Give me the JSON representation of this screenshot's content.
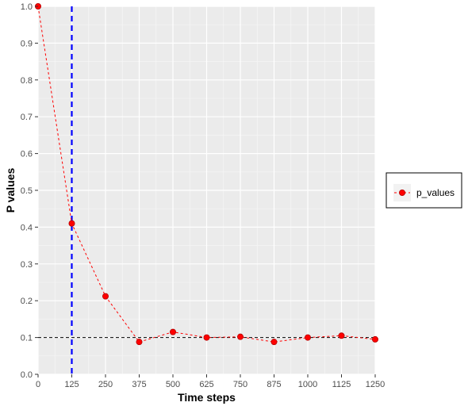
{
  "chart_data": {
    "type": "line",
    "xlabel": "Time steps",
    "ylabel": "P values",
    "x_ticks": [
      0,
      125,
      250,
      375,
      500,
      625,
      750,
      875,
      1000,
      1125,
      1250
    ],
    "y_ticks": [
      0.0,
      0.1,
      0.2,
      0.3,
      0.4,
      0.5,
      0.6,
      0.7,
      0.8,
      0.9,
      1.0
    ],
    "y_tick_labels": [
      "0.0",
      "0.1",
      "0.2",
      "0.3",
      "0.4",
      "0.5",
      "0.6",
      "0.7",
      "0.8",
      "0.9",
      "1.0"
    ],
    "xlim": [
      0,
      1250
    ],
    "ylim": [
      0,
      1
    ],
    "grid": true,
    "legend_position": "right",
    "series": [
      {
        "name": "p_values",
        "color": "#ff0000",
        "line_style": "dashed",
        "marker": "circle",
        "points": [
          {
            "x": 0,
            "y": 1.0
          },
          {
            "x": 125,
            "y": 0.41
          },
          {
            "x": 250,
            "y": 0.212
          },
          {
            "x": 375,
            "y": 0.088
          },
          {
            "x": 500,
            "y": 0.115
          },
          {
            "x": 625,
            "y": 0.1
          },
          {
            "x": 750,
            "y": 0.102
          },
          {
            "x": 875,
            "y": 0.088
          },
          {
            "x": 1000,
            "y": 0.1
          },
          {
            "x": 1125,
            "y": 0.105
          },
          {
            "x": 1250,
            "y": 0.095
          }
        ]
      }
    ],
    "reference_lines": [
      {
        "orientation": "vertical",
        "value": 125,
        "color": "#0000ff",
        "style": "dashed"
      },
      {
        "orientation": "horizontal",
        "value": 0.1,
        "color": "#000000",
        "style": "dashed"
      }
    ]
  }
}
